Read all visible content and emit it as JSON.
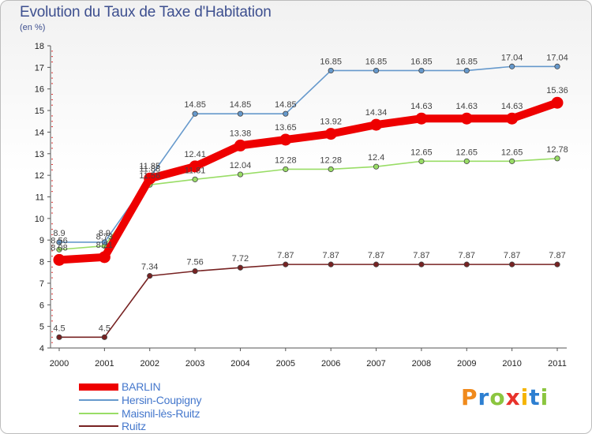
{
  "chart_data": {
    "type": "line",
    "title": "Evolution du Taux de Taxe d'Habitation",
    "unit_label": "(en %)",
    "xlabel": "",
    "ylabel": "",
    "x": [
      "2000",
      "2001",
      "2002",
      "2003",
      "2004",
      "2005",
      "2006",
      "2007",
      "2008",
      "2009",
      "2010",
      "2011"
    ],
    "ylim": [
      4,
      18
    ],
    "yticks": [
      "4",
      "5",
      "6",
      "7",
      "8",
      "9",
      "10",
      "11",
      "12",
      "13",
      "14",
      "15",
      "16",
      "17",
      "18"
    ],
    "grid": false,
    "legend_position": "bottom-left",
    "series": [
      {
        "name": "BARLIN",
        "color": "#ee0000",
        "values": [
          8.08,
          8.21,
          11.85,
          12.41,
          13.38,
          13.65,
          13.92,
          14.34,
          14.63,
          14.63,
          14.63,
          15.36
        ],
        "labels": [
          "8.08",
          "8.21",
          "11.85",
          "12.41",
          "13.38",
          "13.65",
          "13.92",
          "14.34",
          "14.63",
          "14.63",
          "14.63",
          "15.36"
        ]
      },
      {
        "name": "Hersin-Coupigny",
        "color": "#6699cc",
        "values": [
          8.9,
          8.9,
          11.88,
          14.85,
          14.85,
          14.85,
          16.85,
          16.85,
          16.85,
          16.85,
          17.04,
          17.04
        ],
        "labels": [
          "8.9",
          "8.9",
          "11.88",
          "14.85",
          "14.85",
          "14.85",
          "16.85",
          "16.85",
          "16.85",
          "16.85",
          "17.04",
          "17.04"
        ]
      },
      {
        "name": "Maisnil-lès-Ruitz",
        "color": "#99dd66",
        "values": [
          8.56,
          8.73,
          11.56,
          11.81,
          12.04,
          12.28,
          12.28,
          12.4,
          12.65,
          12.65,
          12.65,
          12.78
        ],
        "labels": [
          "8.56",
          "8.73",
          "11.56",
          "11.81",
          "12.04",
          "12.28",
          "12.28",
          "12.4",
          "12.65",
          "12.65",
          "12.65",
          "12.78"
        ]
      },
      {
        "name": "Ruitz",
        "color": "#772222",
        "values": [
          4.5,
          4.5,
          7.34,
          7.56,
          7.72,
          7.87,
          7.87,
          7.87,
          7.87,
          7.87,
          7.87,
          7.87
        ],
        "labels": [
          "4.5",
          "4.5",
          "7.34",
          "7.56",
          "7.72",
          "7.87",
          "7.87",
          "7.87",
          "7.87",
          "7.87",
          "7.87",
          "7.87"
        ]
      }
    ]
  },
  "brand": {
    "letters": [
      "P",
      "r",
      "o",
      "x",
      "i",
      "t",
      "i"
    ],
    "colors": [
      "#f08a1c",
      "#2d7fd1",
      "#8bc53f",
      "#e8322b",
      "#f5b400",
      "#2d7fd1",
      "#8bc53f"
    ]
  }
}
